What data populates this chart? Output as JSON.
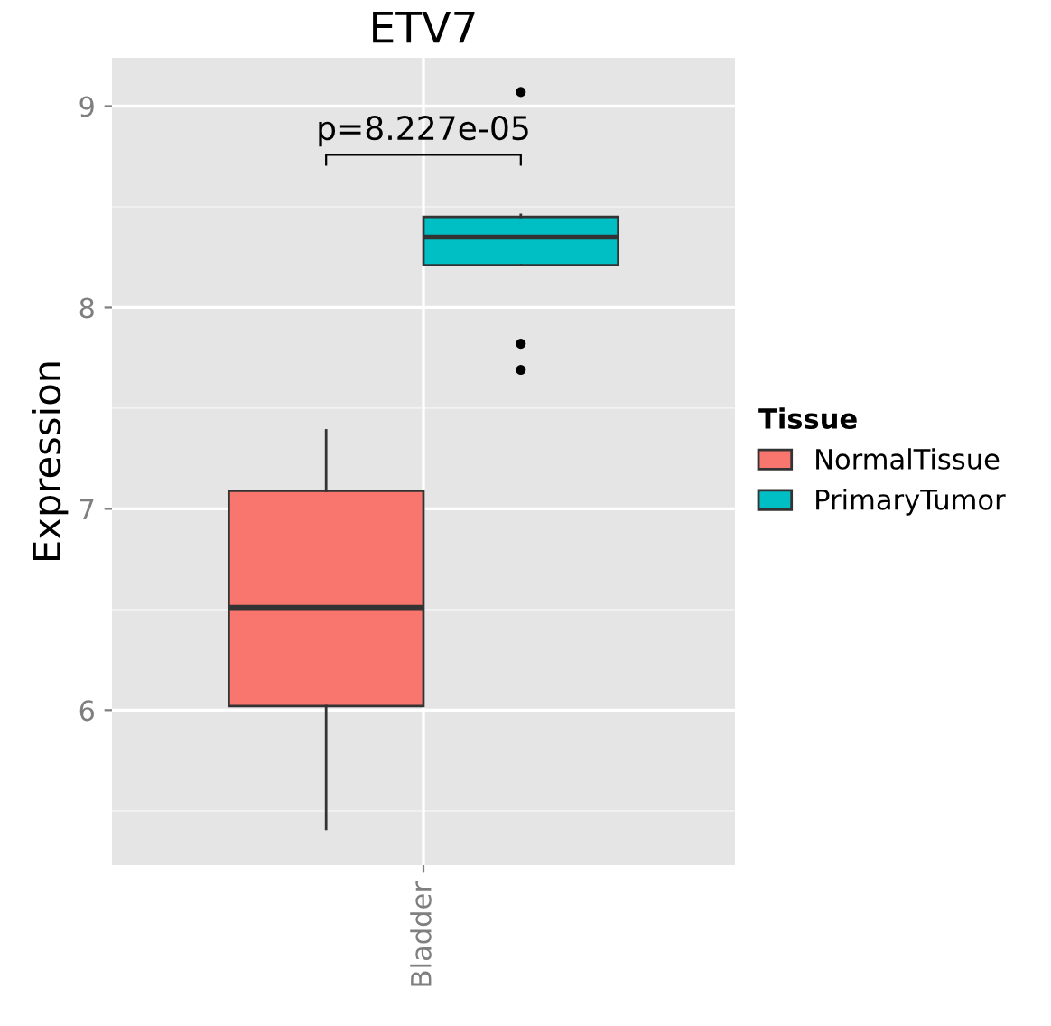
{
  "chart_data": {
    "type": "box",
    "title": "ETV7",
    "ylabel": "Expression",
    "legend_title": "Tissue",
    "categories": [
      "Bladder"
    ],
    "series": [
      {
        "name": "NormalTissue",
        "color": "#f8766d",
        "boxes": [
          {
            "low": 5.41,
            "q1": 6.02,
            "median": 6.51,
            "q3": 7.09,
            "high": 7.39
          }
        ]
      },
      {
        "name": "PrimaryTumor",
        "color": "#00bfc4",
        "boxes": [
          {
            "low": 8.21,
            "q1": 8.21,
            "median": 8.35,
            "q3": 8.45,
            "high": 8.46,
            "outliers": [
              9.07,
              7.82,
              7.69
            ]
          }
        ]
      }
    ],
    "ylim": [
      5.23,
      9.24
    ],
    "yticks": [
      6,
      7,
      8,
      9
    ],
    "grid": true,
    "legend": "right",
    "annotations": [
      "p=8.227e-05"
    ]
  }
}
